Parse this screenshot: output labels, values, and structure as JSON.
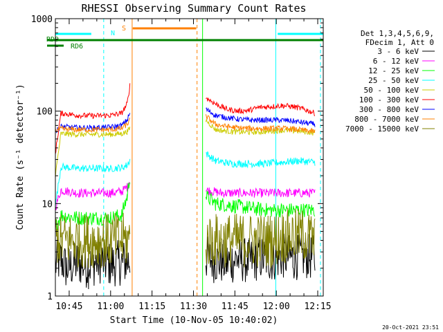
{
  "colors": {
    "background": "#ffffff",
    "axis": "#000000",
    "black": "#000000",
    "magenta": "#ff00ff",
    "green": "#00ff00",
    "cyan": "#00ffff",
    "yellow": "#cccc00",
    "red": "#ff0000",
    "blue": "#0000ff",
    "orange": "#ff8000",
    "olive": "#808000",
    "dark_green": "#008000"
  },
  "chart_data": {
    "type": "line",
    "title": "RHESSI Observing Summary Count Rates",
    "xlabel": "Start Time (10-Nov-05 10:40:02)",
    "ylabel": "Count Rate (s⁻¹ detector⁻¹)",
    "y_scale": "log",
    "ylim": [
      1,
      1000
    ],
    "x_range_minutes": [
      0,
      97
    ],
    "x_ticks": [
      {
        "min": 5,
        "label": "10:45"
      },
      {
        "min": 20,
        "label": "11:00"
      },
      {
        "min": 35,
        "label": "11:15"
      },
      {
        "min": 50,
        "label": "11:30"
      },
      {
        "min": 65,
        "label": "11:45"
      },
      {
        "min": 80,
        "label": "12:00"
      },
      {
        "min": 95,
        "label": "12:15"
      }
    ],
    "y_ticks": [
      {
        "value": 1,
        "label": "1"
      },
      {
        "value": 10,
        "label": "10"
      },
      {
        "value": 100,
        "label": "100"
      },
      {
        "value": 1000,
        "label": "1000"
      }
    ],
    "legend_header": [
      "Det 1,3,4,5,6,9,",
      "FDecim 1, Att 0"
    ],
    "series": [
      {
        "name": "3 - 6 keV",
        "color": "#000000",
        "noise": 0.25,
        "points": [
          [
            0,
            2.2
          ],
          [
            2,
            2.5
          ],
          [
            4,
            2.0
          ],
          [
            8,
            2.3
          ],
          [
            12,
            2.1
          ],
          [
            16,
            2.4
          ],
          [
            20,
            2.2
          ],
          [
            24,
            2.3
          ],
          [
            27,
            2.4
          ],
          [
            27.5,
            null
          ],
          [
            54,
            null
          ],
          [
            54.5,
            2.6
          ],
          [
            58,
            2.4
          ],
          [
            62,
            2.3
          ],
          [
            66,
            2.5
          ],
          [
            70,
            2.4
          ],
          [
            74,
            2.6
          ],
          [
            78,
            2.5
          ],
          [
            82,
            2.7
          ],
          [
            86,
            2.6
          ],
          [
            90,
            2.7
          ],
          [
            94,
            2.6
          ]
        ]
      },
      {
        "name": "6 - 12 keV",
        "color": "#ff00ff",
        "noise": 0.05,
        "points": [
          [
            0,
            9.0
          ],
          [
            2,
            14.0
          ],
          [
            8,
            13.0
          ],
          [
            14,
            13.0
          ],
          [
            20,
            13.0
          ],
          [
            24,
            13.5
          ],
          [
            26,
            15.0
          ],
          [
            27,
            18.0
          ],
          [
            27.5,
            null
          ],
          [
            54,
            null
          ],
          [
            54.5,
            14.0
          ],
          [
            60,
            13.0
          ],
          [
            66,
            13.0
          ],
          [
            72,
            13.0
          ],
          [
            78,
            13.0
          ],
          [
            84,
            13.0
          ],
          [
            90,
            13.0
          ],
          [
            94,
            13.0
          ]
        ]
      },
      {
        "name": "12 - 25 keV",
        "color": "#00ff00",
        "noise": 0.08,
        "points": [
          [
            0,
            5.5
          ],
          [
            2,
            7.5
          ],
          [
            8,
            7.0
          ],
          [
            14,
            7.0
          ],
          [
            20,
            7.0
          ],
          [
            24,
            7.5
          ],
          [
            26,
            12.0
          ],
          [
            27,
            20.0
          ],
          [
            27.5,
            null
          ],
          [
            54,
            null
          ],
          [
            54.5,
            12.0
          ],
          [
            58,
            10.0
          ],
          [
            64,
            9.5
          ],
          [
            70,
            9.0
          ],
          [
            76,
            8.5
          ],
          [
            82,
            8.5
          ],
          [
            88,
            8.5
          ],
          [
            94,
            8.5
          ]
        ]
      },
      {
        "name": "25 - 50 keV",
        "color": "#00ffff",
        "noise": 0.04,
        "points": [
          [
            0,
            9.5
          ],
          [
            2,
            25.0
          ],
          [
            8,
            24.0
          ],
          [
            14,
            24.0
          ],
          [
            20,
            24.0
          ],
          [
            24,
            24.5
          ],
          [
            26,
            26.0
          ],
          [
            27,
            30.0
          ],
          [
            27.5,
            null
          ],
          [
            54,
            null
          ],
          [
            54.5,
            35.0
          ],
          [
            58,
            29.0
          ],
          [
            64,
            27.0
          ],
          [
            70,
            27.0
          ],
          [
            76,
            27.0
          ],
          [
            82,
            28.0
          ],
          [
            88,
            29.0
          ],
          [
            94,
            28.0
          ]
        ]
      },
      {
        "name": "50 - 100 keV",
        "color": "#cccc00",
        "noise": 0.03,
        "points": [
          [
            0,
            20.0
          ],
          [
            2,
            57.0
          ],
          [
            8,
            56.0
          ],
          [
            14,
            56.0
          ],
          [
            20,
            56.0
          ],
          [
            24,
            57.0
          ],
          [
            26,
            60.0
          ],
          [
            27,
            65.0
          ],
          [
            27.5,
            null
          ],
          [
            54,
            null
          ],
          [
            54.5,
            80.0
          ],
          [
            58,
            63.0
          ],
          [
            64,
            60.0
          ],
          [
            70,
            59.0
          ],
          [
            76,
            60.0
          ],
          [
            82,
            62.0
          ],
          [
            88,
            61.0
          ],
          [
            94,
            58.0
          ]
        ]
      },
      {
        "name": "100 - 300 keV",
        "color": "#ff0000",
        "noise": 0.03,
        "points": [
          [
            0,
            35.0
          ],
          [
            2,
            95.0
          ],
          [
            8,
            90.0
          ],
          [
            14,
            89.0
          ],
          [
            20,
            90.0
          ],
          [
            24,
            95.0
          ],
          [
            26,
            120.0
          ],
          [
            27,
            190.0
          ],
          [
            27.5,
            null
          ],
          [
            54,
            null
          ],
          [
            54.5,
            140.0
          ],
          [
            58,
            120.0
          ],
          [
            62,
            105.0
          ],
          [
            66,
            100.0
          ],
          [
            70,
            102.0
          ],
          [
            74,
            110.0
          ],
          [
            78,
            112.0
          ],
          [
            82,
            115.0
          ],
          [
            86,
            112.0
          ],
          [
            90,
            105.0
          ],
          [
            94,
            95.0
          ]
        ]
      },
      {
        "name": "300 - 800 keV",
        "color": "#0000ff",
        "noise": 0.03,
        "points": [
          [
            0,
            60.0
          ],
          [
            2,
            68.0
          ],
          [
            8,
            66.0
          ],
          [
            14,
            66.0
          ],
          [
            20,
            67.0
          ],
          [
            24,
            70.0
          ],
          [
            26,
            80.0
          ],
          [
            27,
            95.0
          ],
          [
            27.5,
            null
          ],
          [
            54,
            null
          ],
          [
            54.5,
            105.0
          ],
          [
            58,
            90.0
          ],
          [
            62,
            85.0
          ],
          [
            66,
            82.0
          ],
          [
            70,
            80.0
          ],
          [
            74,
            80.0
          ],
          [
            78,
            80.0
          ],
          [
            82,
            80.0
          ],
          [
            86,
            78.0
          ],
          [
            90,
            75.0
          ],
          [
            94,
            72.0
          ]
        ]
      },
      {
        "name": "800 - 7000 keV",
        "color": "#ff8000",
        "noise": 0.03,
        "points": [
          [
            0,
            62.0
          ],
          [
            2,
            64.0
          ],
          [
            8,
            63.0
          ],
          [
            14,
            63.0
          ],
          [
            20,
            63.0
          ],
          [
            24,
            65.0
          ],
          [
            26,
            72.0
          ],
          [
            27,
            80.0
          ],
          [
            27.5,
            null
          ],
          [
            54,
            null
          ],
          [
            54.5,
            88.0
          ],
          [
            58,
            72.0
          ],
          [
            62,
            68.0
          ],
          [
            66,
            66.0
          ],
          [
            70,
            65.0
          ],
          [
            74,
            65.0
          ],
          [
            78,
            65.0
          ],
          [
            82,
            65.0
          ],
          [
            86,
            64.0
          ],
          [
            90,
            62.0
          ],
          [
            94,
            60.0
          ]
        ]
      },
      {
        "name": "7000 - 15000 keV",
        "color": "#808000",
        "noise": 0.3,
        "points": [
          [
            0,
            4.5
          ],
          [
            2,
            4.0
          ],
          [
            8,
            4.0
          ],
          [
            14,
            4.0
          ],
          [
            20,
            4.0
          ],
          [
            24,
            4.0
          ],
          [
            27,
            4.0
          ],
          [
            27.5,
            null
          ],
          [
            54,
            null
          ],
          [
            54.5,
            4.0
          ],
          [
            60,
            4.0
          ],
          [
            66,
            4.0
          ],
          [
            72,
            4.0
          ],
          [
            78,
            4.0
          ],
          [
            84,
            4.5
          ],
          [
            90,
            4.5
          ],
          [
            94,
            4.0
          ]
        ]
      }
    ],
    "flag_bars": [
      {
        "label": "N",
        "color": "#00ffff",
        "segments": [
          [
            0,
            13
          ],
          [
            80.5,
            97
          ]
        ]
      },
      {
        "label": "S",
        "color": "#ff8000",
        "segments": [
          [
            28,
            51
          ]
        ]
      },
      {
        "label": "RD0",
        "color": "#008000",
        "segments": [
          [
            0,
            97
          ]
        ]
      },
      {
        "label": "RD6",
        "color": "#008000",
        "segments": [
          [
            0,
            3
          ]
        ]
      }
    ],
    "vertical_markers": [
      {
        "min": 0,
        "color": "#00ffff",
        "style": "solid"
      },
      {
        "min": 17.5,
        "color": "#00ffff",
        "style": "dashed"
      },
      {
        "min": 27.8,
        "color": "#ff8000",
        "style": "solid"
      },
      {
        "min": 51.3,
        "color": "#ff8000",
        "style": "dashed"
      },
      {
        "min": 53.3,
        "color": "#00ff00",
        "style": "solid"
      },
      {
        "min": 79.8,
        "color": "#00ffff",
        "style": "solid"
      },
      {
        "min": 96.0,
        "color": "#00ffff",
        "style": "dashed"
      }
    ],
    "grid": false,
    "legend_position": "right"
  },
  "footer": {
    "timestamp": "20-Oct-2021 23:51"
  }
}
